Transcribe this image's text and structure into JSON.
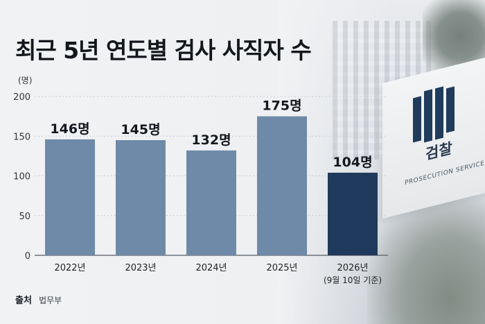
{
  "title": "최근 5년 연도별 검사 사직자 수",
  "unit_label": "(명)",
  "source": {
    "label": "출처",
    "value": "법무부"
  },
  "sign": {
    "title": "검찰",
    "subtitle": "PROSECUTION SERVICE"
  },
  "colors": {
    "bar": "#6e8aa8",
    "bar_highlight": "#1f3a5c",
    "grid": "#c7ccd3",
    "axis": "#555b63"
  },
  "chart_data": {
    "type": "bar",
    "categories": [
      "2022년",
      "2023년",
      "2024년",
      "2025년",
      "2026년"
    ],
    "category_notes": [
      "",
      "",
      "",
      "",
      "(9월 10일 기준)"
    ],
    "values": [
      146,
      145,
      132,
      175,
      104
    ],
    "data_labels": [
      "146명",
      "145명",
      "132명",
      "175명",
      "104명"
    ],
    "highlight_index": 4,
    "yticks": [
      "0",
      "50",
      "100",
      "150",
      "200"
    ],
    "ylim": [
      0,
      200
    ],
    "ylabel": "(명)",
    "grid": true
  }
}
